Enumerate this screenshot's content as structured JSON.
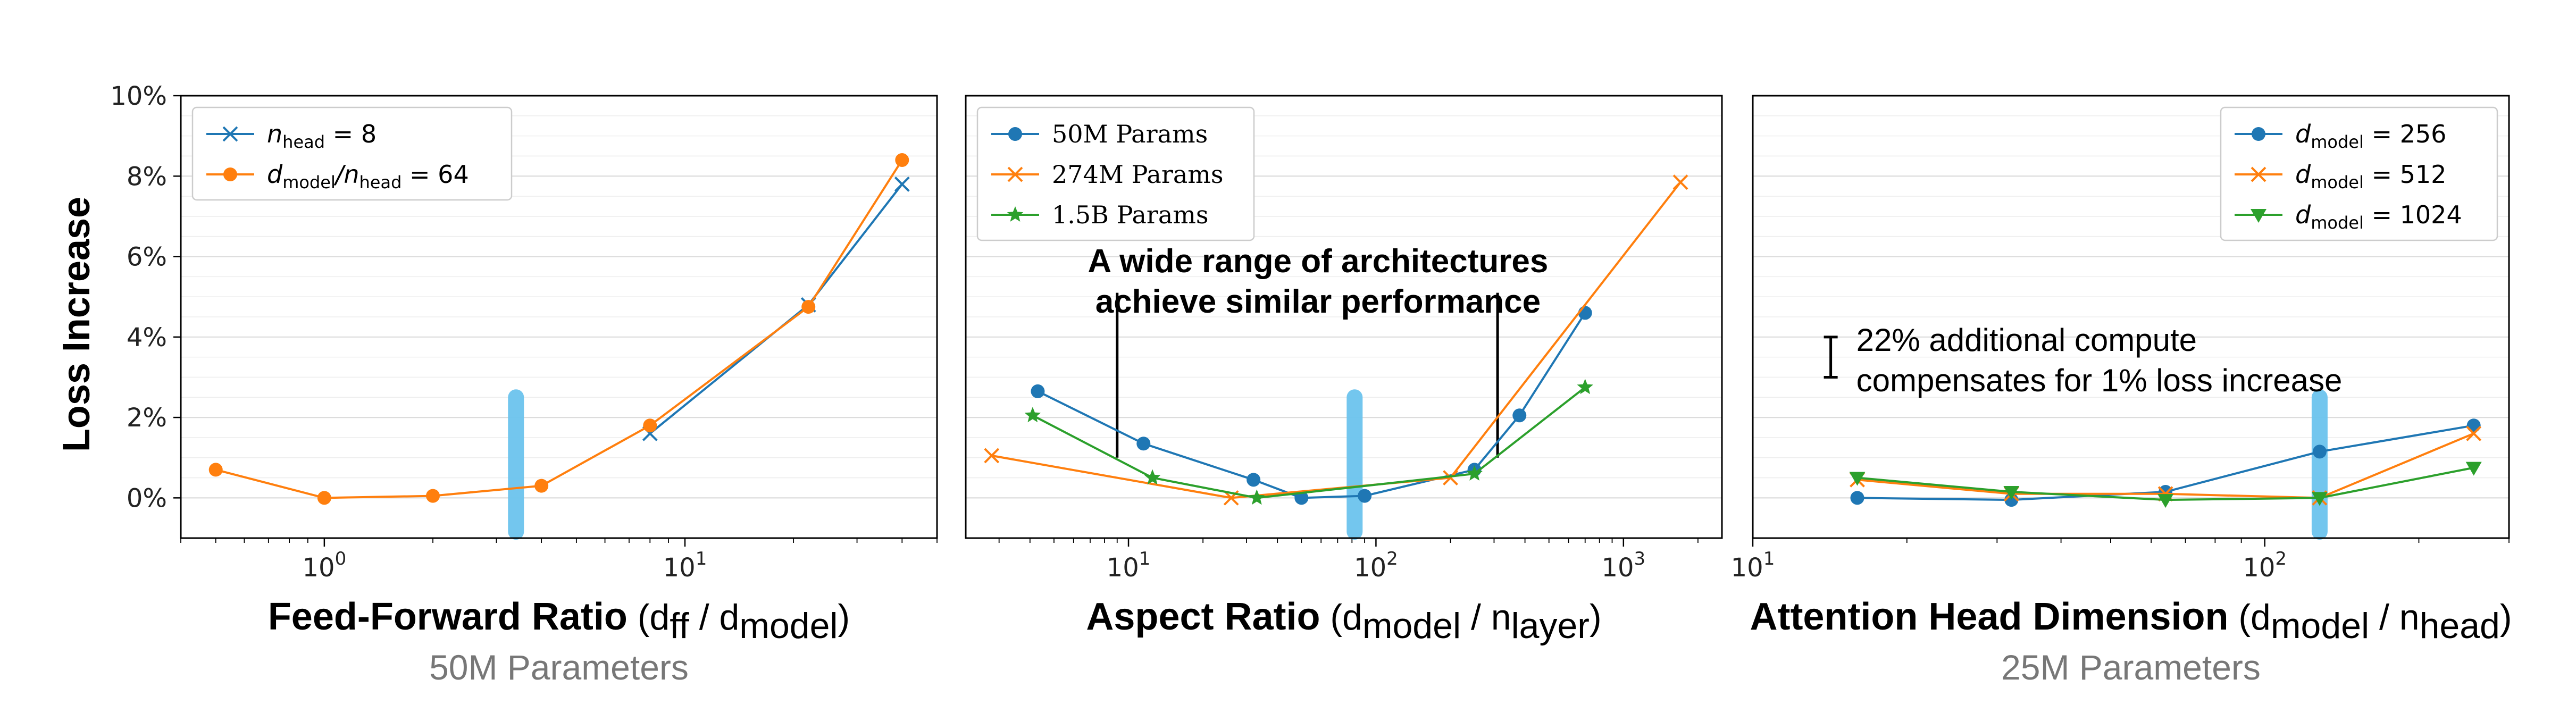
{
  "colors": {
    "blue": "#1f77b4",
    "orange": "#ff7f0e",
    "green": "#2ca02c",
    "highlight": "#6cc4ee"
  },
  "ylabel": "Loss Increase",
  "chart_data": [
    {
      "type": "line",
      "xscale": "log",
      "xlim": [
        0.4,
        50
      ],
      "ylim": [
        -1,
        10
      ],
      "yticks": [
        "0%",
        "2%",
        "4%",
        "6%",
        "8%",
        "10%"
      ],
      "xticks": [
        {
          "base": "10",
          "exp": "0"
        },
        {
          "base": "10",
          "exp": "1"
        }
      ],
      "grid": "horizontal",
      "legend_position": "upper-left",
      "xlabel_main": "Feed-Forward Ratio",
      "xlabel_expr": {
        "open": " (d",
        "sub1": "ff",
        "mid": " / d",
        "sub2": "model",
        "close": ")"
      },
      "subtitle": "50M Parameters",
      "highlight_x": 3.4,
      "highlight_y": [
        -1.0,
        2.5
      ],
      "series": [
        {
          "legend": {
            "pre": "n",
            "sub": "head",
            "post": " = 8"
          },
          "color": "#1f77b4",
          "marker": "x",
          "x": [
            8,
            22,
            40
          ],
          "y": [
            1.6,
            4.8,
            7.8
          ]
        },
        {
          "legend": {
            "pre": "d",
            "sub": "model",
            "mid": "/n",
            "sub2": "head",
            "post": " = 64"
          },
          "color": "#ff7f0e",
          "marker": "o",
          "x": [
            0.5,
            1,
            2,
            4,
            8,
            22,
            40
          ],
          "y": [
            0.7,
            0.0,
            0.05,
            0.3,
            1.8,
            4.75,
            8.4
          ]
        }
      ]
    },
    {
      "type": "line",
      "xscale": "log",
      "xlim": [
        2.2,
        2500
      ],
      "ylim": [
        -1,
        10
      ],
      "yticks": [],
      "xticks": [
        {
          "base": "10",
          "exp": "1"
        },
        {
          "base": "10",
          "exp": "2"
        },
        {
          "base": "10",
          "exp": "3"
        }
      ],
      "grid": "horizontal",
      "legend_position": "upper-left",
      "xlabel_main": "Aspect Ratio",
      "xlabel_expr": {
        "open": " (d",
        "sub1": "model",
        "mid": " / n",
        "sub2": "layer",
        "close": ")"
      },
      "subtitle": "",
      "annotation": [
        "A wide range of architectures",
        "achieve similar performance"
      ],
      "annotation_lines": [
        {
          "x": 9,
          "y_top": 5.1,
          "y_bottom": 1.0
        },
        {
          "x": 310,
          "y_top": 5.1,
          "y_bottom": 1.0
        }
      ],
      "highlight_x": 82,
      "highlight_y": [
        -1.0,
        2.5
      ],
      "series": [
        {
          "legend": {
            "plain": "50M Params"
          },
          "color": "#1f77b4",
          "marker": "o",
          "x": [
            4.3,
            11.5,
            32,
            50,
            90,
            250,
            380,
            700
          ],
          "y": [
            2.65,
            1.35,
            0.45,
            0.0,
            0.05,
            0.7,
            2.05,
            4.6
          ]
        },
        {
          "legend": {
            "plain": "274M Params"
          },
          "color": "#ff7f0e",
          "marker": "x",
          "x": [
            2.8,
            26,
            200,
            1700
          ],
          "y": [
            1.05,
            0.0,
            0.5,
            7.85
          ]
        },
        {
          "legend": {
            "plain": "1.5B Params"
          },
          "color": "#2ca02c",
          "marker": "*",
          "x": [
            4.1,
            12.5,
            33,
            250,
            700
          ],
          "y": [
            2.05,
            0.5,
            0.0,
            0.6,
            2.75
          ]
        }
      ]
    },
    {
      "type": "line",
      "xscale": "log",
      "xlim": [
        10,
        300
      ],
      "ylim": [
        -1,
        10
      ],
      "yticks": [],
      "xticks": [
        {
          "base": "10",
          "exp": "1"
        },
        {
          "base": "10",
          "exp": "2"
        }
      ],
      "grid": "horizontal",
      "legend_position": "upper-right",
      "xlabel_main": "Attention Head Dimension",
      "xlabel_expr": {
        "open": " (d",
        "sub1": "model",
        "mid": " / n",
        "sub2": "head",
        "close": ")"
      },
      "subtitle": "25M Parameters",
      "annotation": [
        "22% additional compute",
        "compensates for 1% loss increase"
      ],
      "errorbar": {
        "x": 14.2,
        "y_low": 3.0,
        "y_high": 4.0
      },
      "highlight_x": 128,
      "highlight_y": [
        -1.0,
        2.5
      ],
      "series": [
        {
          "legend": {
            "pre": "d",
            "sub": "model",
            "post": " = 256"
          },
          "color": "#1f77b4",
          "marker": "o",
          "x": [
            16,
            32,
            64,
            128,
            256
          ],
          "y": [
            0.0,
            -0.05,
            0.15,
            1.15,
            1.8
          ]
        },
        {
          "legend": {
            "pre": "d",
            "sub": "model",
            "post": " = 512"
          },
          "color": "#ff7f0e",
          "marker": "x",
          "x": [
            16,
            32,
            64,
            128,
            256
          ],
          "y": [
            0.45,
            0.1,
            0.1,
            0.0,
            1.6
          ]
        },
        {
          "legend": {
            "pre": "d",
            "sub": "model",
            "post": " = 1024"
          },
          "color": "#2ca02c",
          "marker": "v",
          "x": [
            16,
            32,
            64,
            128,
            256
          ],
          "y": [
            0.5,
            0.15,
            -0.05,
            0.0,
            0.75
          ]
        }
      ]
    }
  ]
}
